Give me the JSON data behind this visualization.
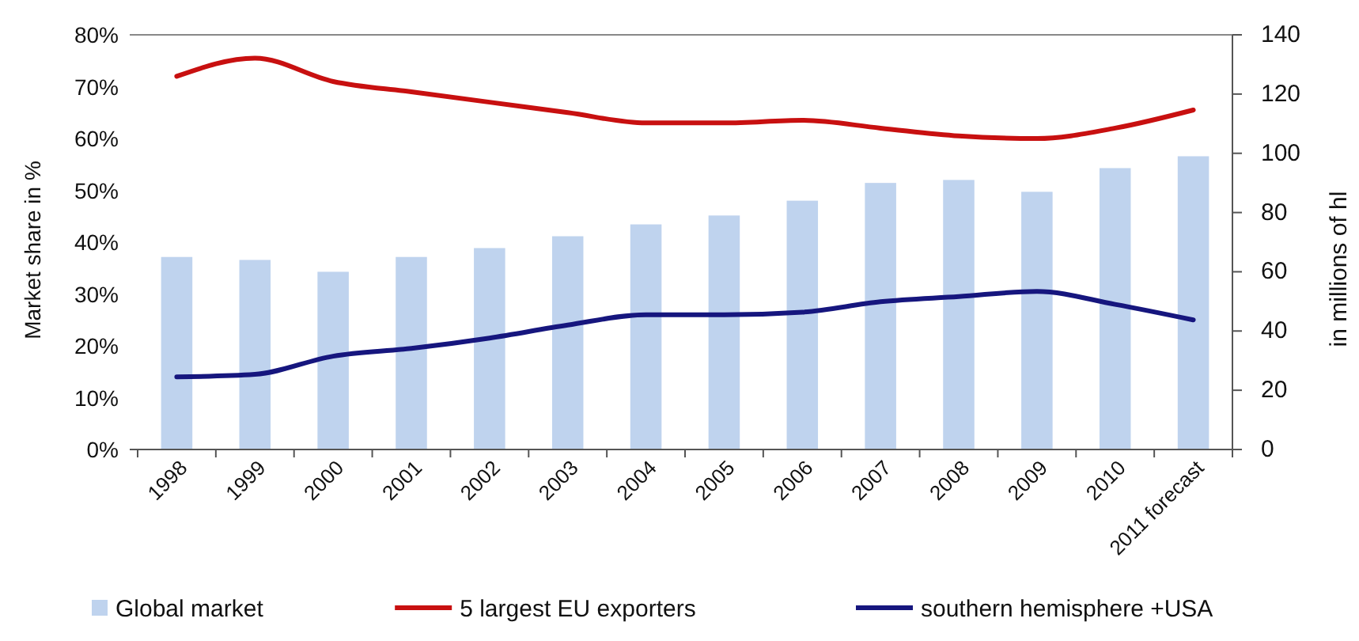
{
  "chart_data": {
    "type": "bar",
    "categories": [
      "1998",
      "1999",
      "2000",
      "2001",
      "2002",
      "2003",
      "2004",
      "2005",
      "2006",
      "2007",
      "2008",
      "2009",
      "2010",
      "2011 forecast"
    ],
    "ylabel": "Market share in %",
    "y2label": "in millions of hl",
    "ylim": [
      0,
      80
    ],
    "yticks": [
      {
        "value": 0,
        "label": "0%"
      },
      {
        "value": 10,
        "label": "10%"
      },
      {
        "value": 20,
        "label": "20%"
      },
      {
        "value": 30,
        "label": "30%"
      },
      {
        "value": 40,
        "label": "40%"
      },
      {
        "value": 50,
        "label": "50%"
      },
      {
        "value": 60,
        "label": "60%"
      },
      {
        "value": 70,
        "label": "70%"
      },
      {
        "value": 80,
        "label": "80%"
      }
    ],
    "y2lim": [
      0,
      140
    ],
    "y2ticks": [
      0,
      20,
      40,
      60,
      80,
      100,
      120,
      140
    ],
    "series": [
      {
        "name": "Global market",
        "axis": "y2",
        "color": "#bfd3ee",
        "values": [
          65,
          64,
          60,
          65,
          68,
          72,
          76,
          79,
          84,
          90,
          91,
          87,
          95,
          99
        ]
      },
      {
        "name": "5 largest EU exporters",
        "type": "line",
        "color": "#c81010",
        "values": [
          72,
          75.5,
          71,
          69,
          67,
          65,
          63,
          63,
          63.5,
          62,
          60.5,
          60,
          62,
          65.5
        ]
      },
      {
        "name": "southern hemisphere +USA",
        "type": "line",
        "color": "#16167e",
        "values": [
          14,
          14.5,
          18,
          19.5,
          21.5,
          24,
          26,
          26,
          26.5,
          28.5,
          29.5,
          30.5,
          28,
          25
        ]
      }
    ],
    "legend": "bottom"
  }
}
